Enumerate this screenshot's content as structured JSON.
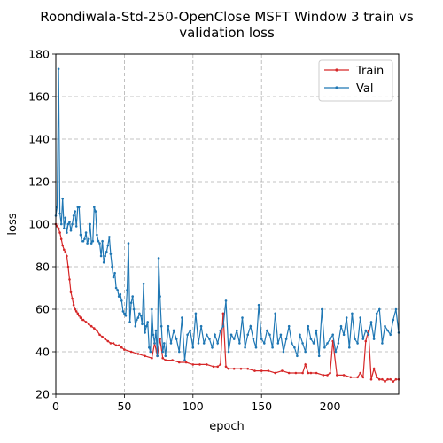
{
  "chart_data": {
    "type": "line",
    "title_lines": [
      "Roondiwala-Std-250-OpenClose MSFT Window 3 train vs",
      "validation loss"
    ],
    "xlabel": "epoch",
    "ylabel": "loss",
    "xlim": [
      0,
      250
    ],
    "ylim": [
      20,
      180
    ],
    "xticks": [
      0,
      50,
      100,
      150,
      200
    ],
    "yticks": [
      20,
      40,
      60,
      80,
      100,
      120,
      140,
      160,
      180
    ],
    "grid": true,
    "legend_position": "top-right",
    "series": [
      {
        "name": "Train",
        "color": "#d62728",
        "x": [
          0,
          1,
          2,
          3,
          4,
          5,
          6,
          7,
          8,
          9,
          10,
          11,
          12,
          13,
          14,
          15,
          16,
          17,
          18,
          19,
          20,
          22,
          24,
          26,
          28,
          30,
          32,
          34,
          36,
          38,
          40,
          42,
          44,
          46,
          48,
          50,
          55,
          60,
          65,
          70,
          72,
          74,
          76,
          78,
          80,
          85,
          90,
          95,
          100,
          105,
          110,
          115,
          118,
          120,
          122,
          124,
          126,
          130,
          135,
          140,
          145,
          150,
          155,
          160,
          165,
          170,
          175,
          180,
          182,
          184,
          186,
          190,
          195,
          198,
          200,
          202,
          205,
          210,
          215,
          220,
          222,
          224,
          226,
          228,
          230,
          232,
          234,
          236,
          238,
          240,
          242,
          244,
          246,
          248,
          250
        ],
        "y": [
          100,
          99,
          98,
          96,
          93,
          90,
          88,
          87,
          85,
          80,
          74,
          68,
          65,
          62,
          60,
          59,
          58,
          57,
          56,
          55,
          55,
          54,
          53,
          52,
          51,
          50,
          48,
          47,
          46,
          45,
          44,
          44,
          43,
          43,
          42,
          41,
          40,
          39,
          38,
          37,
          44,
          38,
          46,
          37,
          36,
          36,
          35,
          35,
          34,
          34,
          34,
          33,
          33,
          34,
          58,
          33,
          32,
          32,
          32,
          32,
          31,
          31,
          31,
          30,
          31,
          30,
          30,
          30,
          34,
          30,
          30,
          30,
          29,
          29,
          30,
          45,
          29,
          29,
          28,
          28,
          30,
          28,
          45,
          50,
          27,
          32,
          28,
          27,
          27,
          26,
          27,
          27,
          26,
          27,
          27
        ]
      },
      {
        "name": "Val",
        "color": "#1f77b4",
        "x": [
          0,
          1,
          2,
          3,
          4,
          5,
          6,
          7,
          8,
          9,
          10,
          11,
          12,
          13,
          14,
          15,
          16,
          17,
          18,
          19,
          20,
          21,
          22,
          23,
          24,
          25,
          26,
          27,
          28,
          29,
          30,
          31,
          32,
          33,
          34,
          35,
          36,
          37,
          38,
          39,
          40,
          41,
          42,
          43,
          44,
          45,
          46,
          47,
          48,
          49,
          50,
          51,
          52,
          53,
          54,
          55,
          56,
          57,
          58,
          59,
          60,
          61,
          62,
          63,
          64,
          65,
          66,
          67,
          68,
          69,
          70,
          71,
          72,
          73,
          74,
          75,
          76,
          77,
          78,
          79,
          80,
          82,
          84,
          86,
          88,
          90,
          92,
          94,
          96,
          98,
          100,
          102,
          104,
          106,
          108,
          110,
          112,
          114,
          116,
          118,
          120,
          122,
          124,
          126,
          128,
          130,
          132,
          134,
          136,
          138,
          140,
          142,
          144,
          146,
          148,
          150,
          152,
          154,
          156,
          158,
          160,
          162,
          164,
          166,
          168,
          170,
          172,
          174,
          176,
          178,
          180,
          182,
          184,
          186,
          188,
          190,
          192,
          194,
          196,
          198,
          200,
          202,
          204,
          206,
          208,
          210,
          212,
          214,
          216,
          218,
          220,
          222,
          224,
          226,
          228,
          230,
          232,
          234,
          236,
          238,
          240,
          242,
          244,
          246,
          248,
          250
        ],
        "y": [
          104,
          108,
          173,
          105,
          100,
          112,
          98,
          103,
          96,
          100,
          101,
          97,
          100,
          104,
          106,
          99,
          108,
          108,
          95,
          92,
          92,
          93,
          96,
          91,
          93,
          100,
          91,
          92,
          108,
          106,
          95,
          92,
          91,
          85,
          92,
          82,
          85,
          87,
          90,
          94,
          86,
          80,
          75,
          77,
          70,
          69,
          66,
          67,
          64,
          59,
          58,
          57,
          69,
          91,
          54,
          63,
          66,
          60,
          52,
          55,
          56,
          58,
          57,
          53,
          72,
          49,
          52,
          54,
          42,
          40,
          60,
          48,
          44,
          50,
          38,
          84,
          66,
          52,
          40,
          44,
          38,
          52,
          44,
          50,
          46,
          40,
          56,
          36,
          48,
          50,
          42,
          58,
          44,
          52,
          44,
          48,
          46,
          42,
          48,
          44,
          50,
          52,
          64,
          40,
          48,
          46,
          50,
          44,
          56,
          42,
          48,
          52,
          46,
          42,
          62,
          46,
          44,
          50,
          48,
          42,
          58,
          44,
          48,
          40,
          46,
          52,
          44,
          42,
          38,
          48,
          44,
          40,
          52,
          46,
          44,
          50,
          38,
          60,
          42,
          44,
          46,
          48,
          40,
          44,
          52,
          48,
          56,
          42,
          58,
          46,
          44,
          56,
          46,
          50,
          48,
          54,
          46,
          58,
          60,
          44,
          52,
          50,
          48,
          55,
          60,
          49
        ]
      }
    ]
  }
}
